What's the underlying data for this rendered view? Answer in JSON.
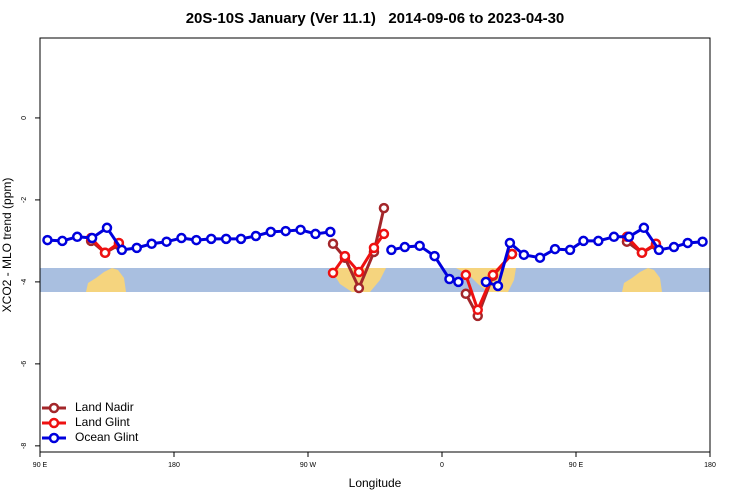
{
  "chart_data": {
    "type": "line",
    "title": "20S-10S January (Ver 11.1)   2014-09-06 to 2023-04-30",
    "xlabel": "Longitude",
    "ylabel": "XCO2 - MLO trend (ppm)",
    "xlim": [
      90,
      540
    ],
    "xticks": [
      {
        "value": 90,
        "label": "90 E"
      },
      180,
      {
        "value": 270,
        "label": "90 W"
      },
      {
        "value": 360,
        "label": "0"
      },
      {
        "value": 450,
        "label": "90 E"
      },
      {
        "value": 540,
        "label": "180"
      }
    ],
    "ylim": [
      -8.15,
      1.95
    ],
    "yticks": [
      -8,
      -6,
      -4,
      -2,
      0
    ],
    "legend": "bottom-left",
    "series": [
      {
        "name": "Land Nadir",
        "color": "#a3262a",
        "x": [
          124.3,
          133.7,
          143,
          null,
          286.8,
          294.8,
          304.2,
          314.3,
          321,
          null,
          376,
          384,
          394.2,
          407,
          null,
          484.2,
          494.3,
          503.7
        ],
        "values": [
          -3.0,
          -3.29,
          -3.1,
          null,
          -3.07,
          -3.41,
          -4.15,
          -3.27,
          -2.2,
          null,
          -4.29,
          -4.83,
          -3.85,
          -3.32,
          null,
          -3.02,
          -3.29,
          -3.1
        ]
      },
      {
        "name": "Land Glint",
        "color": "#ee1111",
        "x": [
          124.3,
          133.7,
          143,
          null,
          286.8,
          294.8,
          304.2,
          314.3,
          321,
          null,
          376,
          384,
          394.2,
          407,
          null,
          484.2,
          494.3,
          503.7
        ],
        "values": [
          -2.93,
          -3.29,
          -3.05,
          null,
          -3.78,
          -3.37,
          -3.76,
          -3.17,
          -2.83,
          null,
          -3.83,
          -4.68,
          -3.83,
          -3.32,
          null,
          -2.9,
          -3.29,
          -3.07
        ]
      },
      {
        "name": "Ocean Glint",
        "color": "#0000dd",
        "x": [
          95,
          105,
          115,
          125,
          135,
          145,
          155,
          165,
          175,
          185,
          195,
          205,
          215,
          225,
          235,
          245,
          255,
          265,
          275,
          285,
          null,
          326,
          335,
          345,
          355,
          365,
          371,
          null,
          389.5,
          397.6,
          405.6,
          415,
          425.8,
          435.9,
          446,
          455,
          465,
          475.5,
          485.6,
          495.6,
          505.7,
          515.8,
          525,
          535
        ],
        "values": [
          -2.98,
          -3.0,
          -2.9,
          -2.93,
          -2.68,
          -3.22,
          -3.17,
          -3.07,
          -3.02,
          -2.93,
          -2.98,
          -2.95,
          -2.95,
          -2.95,
          -2.88,
          -2.78,
          -2.76,
          -2.73,
          -2.83,
          -2.78,
          null,
          -3.22,
          -3.15,
          -3.12,
          -3.37,
          -3.93,
          -4.0,
          null,
          -4.0,
          -4.1,
          -3.05,
          -3.34,
          -3.41,
          -3.2,
          -3.22,
          -3.0,
          -3.0,
          -2.9,
          -2.9,
          -2.68,
          -3.22,
          -3.15,
          -3.05,
          -3.02
        ]
      }
    ]
  }
}
